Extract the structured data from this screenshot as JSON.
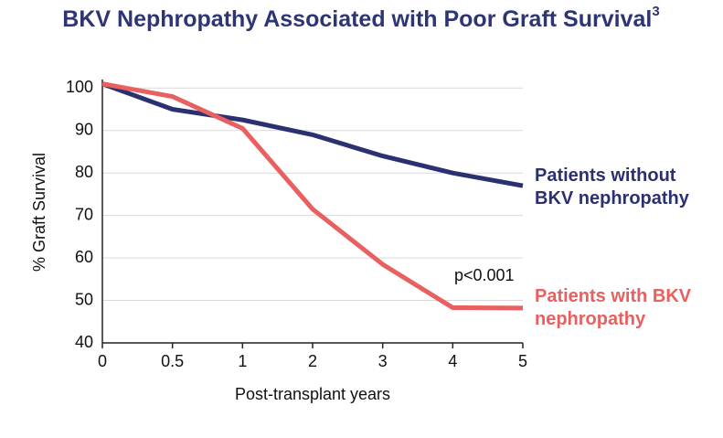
{
  "chart_data": {
    "type": "line",
    "title": "BKV Nephropathy Associated with Poor Graft Survival",
    "title_superscript": "3",
    "x_label": "Post-transplant years",
    "y_label": "% Graft Survival",
    "annotation": "p<0.001",
    "categories": [
      "0",
      "0.5",
      "1",
      "2",
      "3",
      "4",
      "5"
    ],
    "series": [
      {
        "name": "Patients without BKV nephropathy",
        "color": "#2b3070",
        "values": [
          101,
          95,
          92.5,
          89,
          84,
          80,
          77
        ]
      },
      {
        "name": "Patients with BKV nephropathy",
        "color": "#e8605f",
        "values": [
          101,
          98,
          90.5,
          71.5,
          58.5,
          48.3,
          48.2
        ]
      }
    ],
    "ylim": [
      40,
      102
    ],
    "yticks": [
      40,
      50,
      60,
      70,
      80,
      90,
      100
    ],
    "grid": true
  }
}
